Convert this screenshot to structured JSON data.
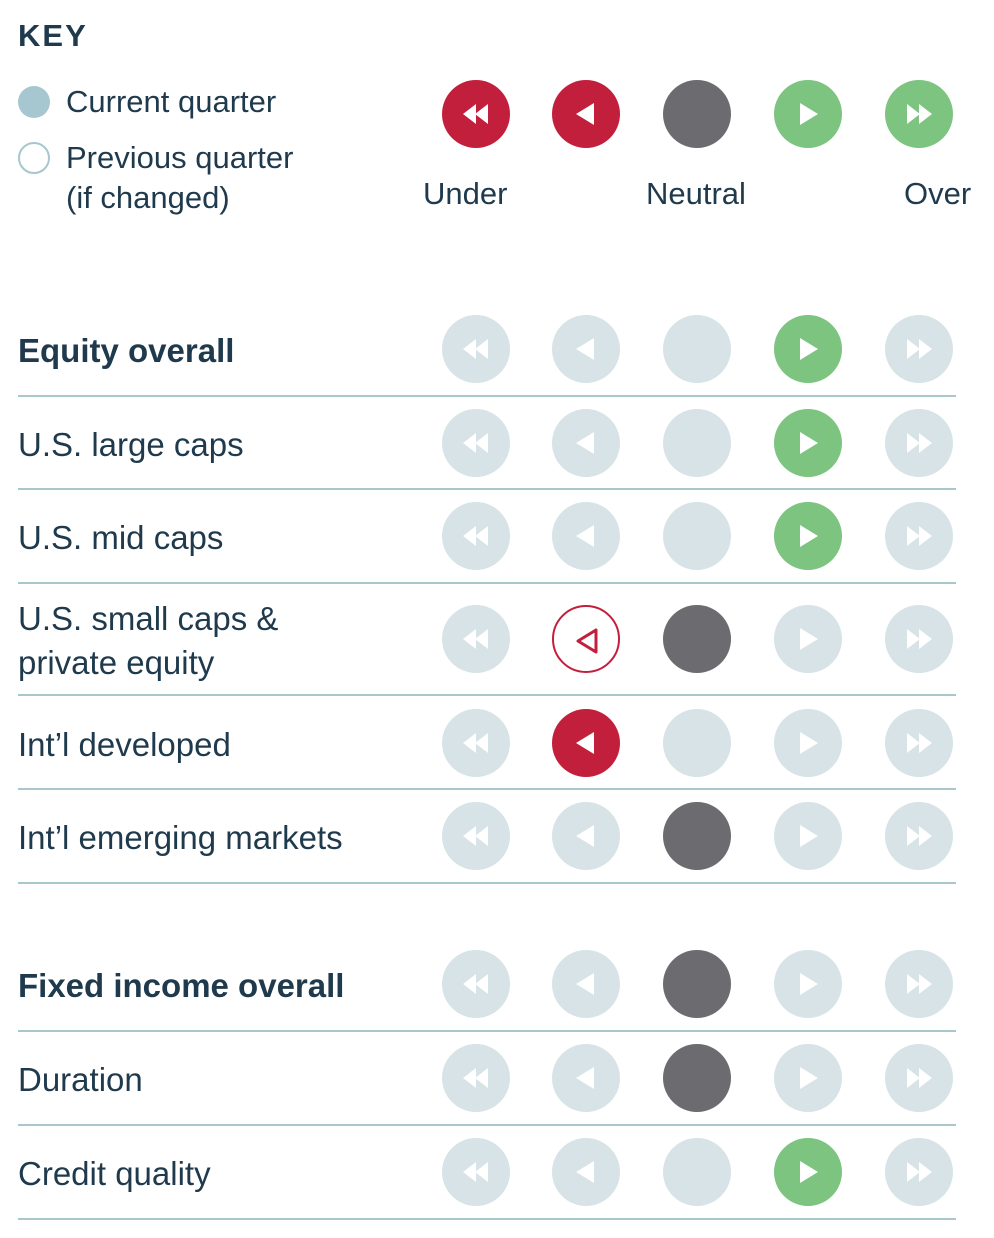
{
  "key": {
    "title": "KEY",
    "current_label": "Current quarter",
    "previous_label_line1": "Previous quarter",
    "previous_label_line2": "(if changed)",
    "scale_under": "Under",
    "scale_neutral": "Neutral",
    "scale_over": "Over"
  },
  "positions": [
    "strong-under",
    "under",
    "neutral",
    "over",
    "strong-over"
  ],
  "icons": [
    "double-left-arrow-icon",
    "left-arrow-icon",
    "none",
    "right-arrow-icon",
    "double-right-arrow-icon"
  ],
  "colors": {
    "under": "#c21f3d",
    "neutral": "#6b6b70",
    "over": "#7cc47f",
    "inactive": "#d7e3e6",
    "text": "#1f3a4d",
    "divider": "#a9c7cd",
    "legend_dot": "#a6c7cf"
  },
  "rows": [
    {
      "lines": [
        "Equity overall"
      ],
      "bold": true,
      "current": 3,
      "previous": null
    },
    {
      "lines": [
        "U.S. large caps"
      ],
      "bold": false,
      "current": 3,
      "previous": null
    },
    {
      "lines": [
        "U.S. mid caps"
      ],
      "bold": false,
      "current": 3,
      "previous": null
    },
    {
      "lines": [
        "U.S. small caps &",
        "private equity"
      ],
      "bold": false,
      "current": 2,
      "previous": 1
    },
    {
      "lines": [
        "Int’l developed"
      ],
      "bold": false,
      "current": 1,
      "previous": null
    },
    {
      "lines": [
        "Int’l emerging markets"
      ],
      "bold": false,
      "current": 2,
      "previous": null
    },
    {
      "lines": [
        "Fixed income overall"
      ],
      "bold": true,
      "current": 2,
      "previous": null
    },
    {
      "lines": [
        "Duration"
      ],
      "bold": false,
      "current": 2,
      "previous": null
    },
    {
      "lines": [
        "Credit quality"
      ],
      "bold": false,
      "current": 3,
      "previous": null
    }
  ]
}
